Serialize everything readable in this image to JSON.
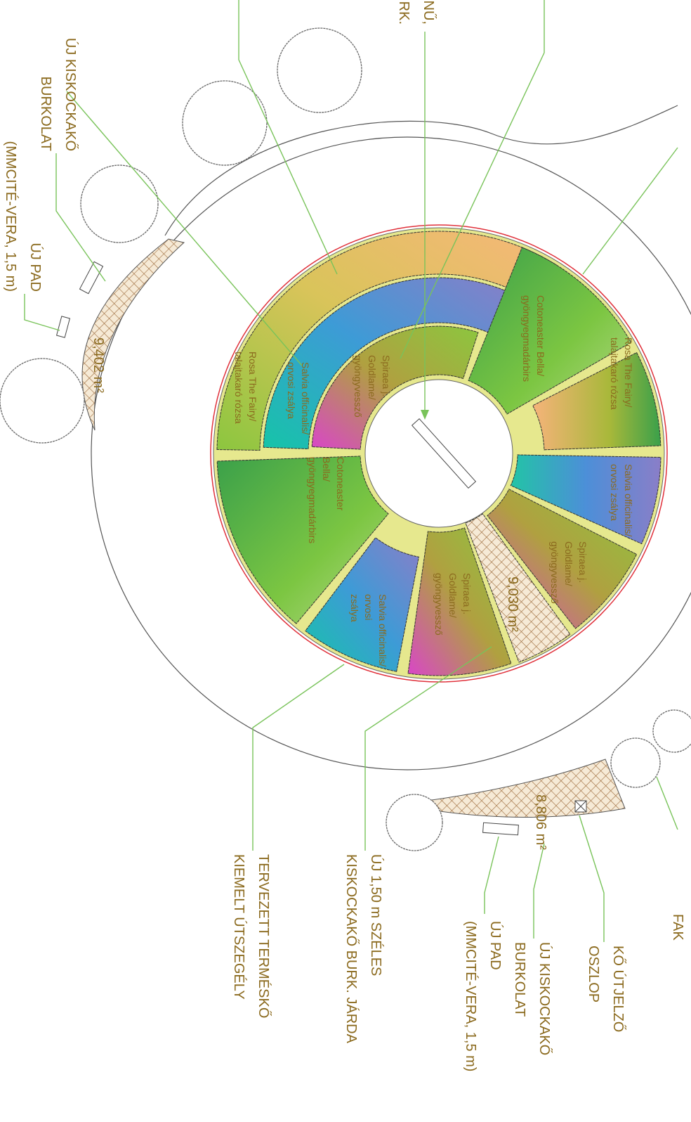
{
  "labels": [
    {
      "lines": [
        "ÚJ KISKOCKAKŐ",
        "BURKOLAT"
      ]
    },
    {
      "lines": [
        "ÚJ PAD",
        "(MMCITÉ-VERA, 1,5 m)"
      ]
    },
    {
      "lines": [
        "NŰ,",
        "RK."
      ]
    },
    {
      "lines": [
        "9,402 m²"
      ]
    },
    {
      "lines": [
        "9,030 m²"
      ]
    },
    {
      "lines": [
        "8,806 m²"
      ]
    },
    {
      "lines": [
        "TERVEZETT TERMÉSKŐ",
        "KIEMELT ÚTSZEGÉLY"
      ]
    },
    {
      "lines": [
        "ÚJ 1,50 m SZÉLES",
        "KISKOCKAKŐ BURK. JÁRDA"
      ]
    },
    {
      "lines": [
        "ÚJ PAD",
        "(MMCITÉ-VERA, 1,5 m)"
      ]
    },
    {
      "lines": [
        "ÚJ KISKOCKAKŐ",
        "BURKOLAT"
      ]
    },
    {
      "lines": [
        "KŐ ÚTJELZŐ",
        "OSZLOP"
      ]
    },
    {
      "lines": [
        "FAK"
      ]
    },
    {
      "lines": [
        "Rosa The Fairy/",
        "talajtakaró rózsa"
      ]
    },
    {
      "lines": [
        "Cotoneaster Bella/",
        "gyöngyegmadárbirs"
      ]
    },
    {
      "lines": [
        "Spiraea j.",
        "Goldlame/",
        "gyöngyvessző"
      ]
    },
    {
      "lines": [
        "Salvia officinalis/",
        "orvosi zsálya"
      ]
    },
    {
      "lines": [
        "Rosa The Fairy/",
        "talajtakaró rózsa"
      ]
    },
    {
      "lines": [
        "Cotoneaster",
        "Bella/",
        "gyöngyegmadárbirs"
      ]
    },
    {
      "lines": [
        "Salvia officinalis/",
        "orvosi zsálya"
      ]
    },
    {
      "lines": [
        "Spiraea j.",
        "Goldlame/",
        "gyöngyvessző"
      ]
    },
    {
      "lines": [
        "Spiraea j.",
        "Goldlame/",
        "gyöngyvessző"
      ]
    },
    {
      "lines": [
        "Salvia officinalis/",
        "orvosi",
        "zsálya"
      ]
    }
  ]
}
